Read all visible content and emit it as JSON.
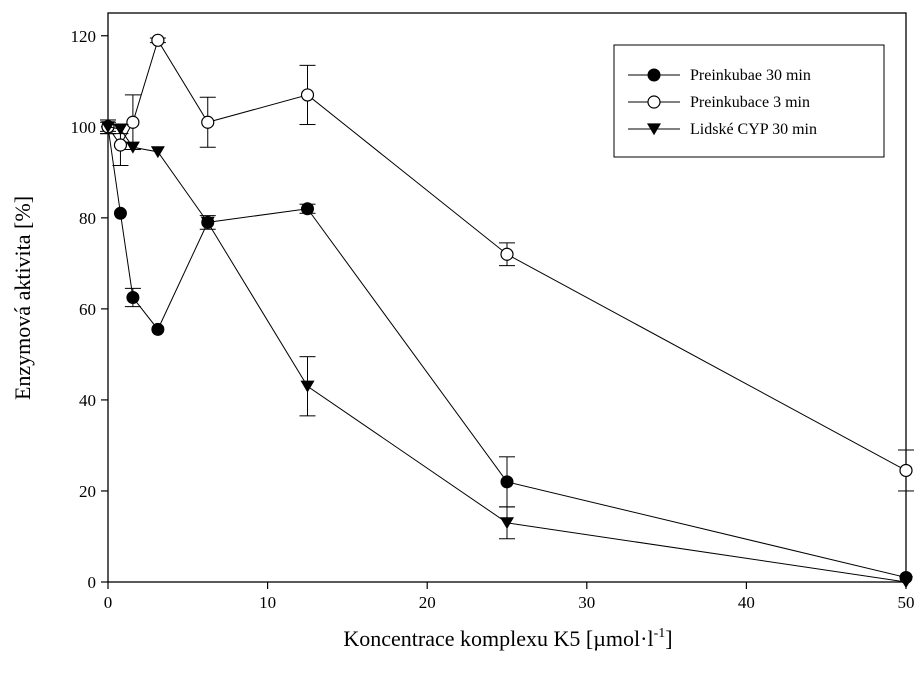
{
  "chart_data": {
    "type": "line",
    "xlabel": {
      "main": "Koncentrace komplexu K5 [µmol·l",
      "sup": "-1",
      "tail": "]"
    },
    "ylabel": "Enzymová aktivita [%]",
    "xlim": [
      0,
      50
    ],
    "ylim": [
      0,
      125
    ],
    "xticks": [
      0,
      10,
      20,
      30,
      40,
      50
    ],
    "yticks": [
      0,
      20,
      40,
      60,
      80,
      100,
      120
    ],
    "xtick_labels": [
      "0",
      "10",
      "20",
      "30",
      "40",
      "50"
    ],
    "ytick_labels": [
      "0",
      "20",
      "40",
      "60",
      "80",
      "100",
      "120"
    ],
    "grid": false,
    "legend_position": "top-right",
    "series": [
      {
        "name": "Preinkubae 30 min",
        "marker": "filled-circle",
        "x": [
          0,
          0.78,
          1.56,
          3.125,
          6.25,
          12.5,
          25,
          50
        ],
        "y": [
          100,
          81,
          62.5,
          55.5,
          79,
          82,
          22,
          1
        ],
        "err": [
          1.5,
          0,
          2,
          0,
          0,
          1,
          5.5,
          0
        ]
      },
      {
        "name": "Preinkubace 3 min",
        "marker": "open-circle",
        "x": [
          0,
          0.78,
          1.56,
          3.125,
          6.25,
          12.5,
          25,
          50
        ],
        "y": [
          100,
          96,
          101,
          119,
          101,
          107,
          72,
          24.5
        ],
        "err": [
          1,
          4.5,
          6,
          0.5,
          5.5,
          6.5,
          2.5,
          4.5
        ]
      },
      {
        "name": "Lidské CYP 30 min",
        "marker": "filled-triangle-down",
        "x": [
          0,
          0.78,
          1.56,
          3.125,
          6.25,
          12.5,
          25,
          50
        ],
        "y": [
          100,
          99.5,
          95.5,
          94.5,
          79,
          43,
          13,
          0
        ],
        "err": [
          1.5,
          1,
          0,
          0,
          1.5,
          6.5,
          3.5,
          0
        ]
      }
    ]
  }
}
